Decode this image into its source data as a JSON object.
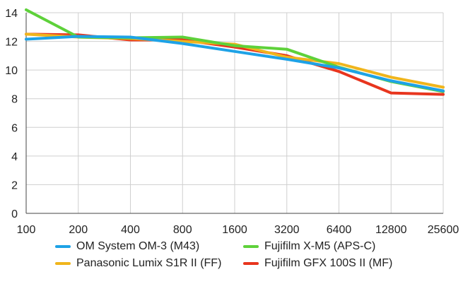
{
  "chart_data": {
    "type": "line",
    "title": "",
    "xlabel": "",
    "ylabel": "",
    "x": [
      "100",
      "200",
      "400",
      "800",
      "1600",
      "3200",
      "6400",
      "12800",
      "25600"
    ],
    "ylim": [
      0,
      14
    ],
    "yticks": [
      "0",
      "2",
      "4",
      "6",
      "8",
      "10",
      "12",
      "14"
    ],
    "grid": true,
    "legend_position": "bottom",
    "series": [
      {
        "name": "Fujifilm GFX 100S II (MF)",
        "color": "#e8351e",
        "values": [
          12.5,
          12.45,
          12.1,
          12.1,
          11.6,
          11.0,
          9.9,
          8.4,
          8.3
        ]
      },
      {
        "name": "Panasonic Lumix S1R II (FF)",
        "color": "#f0b51c",
        "values": [
          12.5,
          12.3,
          12.2,
          12.0,
          11.8,
          10.9,
          10.45,
          9.5,
          8.8
        ]
      },
      {
        "name": "Fujifilm X-M5 (APS-C)",
        "color": "#5ed13a",
        "values": [
          14.2,
          12.3,
          12.25,
          12.3,
          11.7,
          11.45,
          10.2,
          9.2,
          8.5
        ]
      },
      {
        "name": "OM System OM-3 (M43)",
        "color": "#1ea2e6",
        "values": [
          12.15,
          12.35,
          12.3,
          11.85,
          11.3,
          10.75,
          10.15,
          9.25,
          8.55
        ]
      }
    ]
  },
  "legend": [
    {
      "label": "OM System OM-3 (M43)",
      "color": "#1ea2e6"
    },
    {
      "label": "Fujifilm X-M5 (APS-C)",
      "color": "#5ed13a"
    },
    {
      "label": "Panasonic Lumix S1R II (FF)",
      "color": "#f0b51c"
    },
    {
      "label": "Fujifilm GFX 100S II (MF)",
      "color": "#e8351e"
    }
  ]
}
